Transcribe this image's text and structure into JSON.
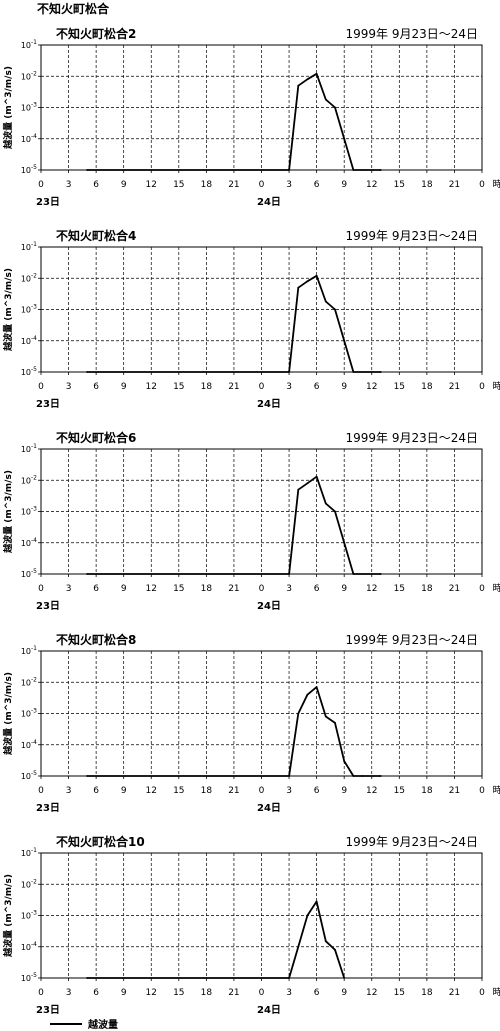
{
  "page_title": "不知火町松合",
  "legend": {
    "label": "越波量"
  },
  "chart_data": [
    {
      "type": "line",
      "title": "不知火町松合2",
      "period": "1999年  9月23日～24日",
      "ylabel": "越波量 (m^3/m/s)",
      "x_unit": "時",
      "x_ticks": [
        "0",
        "3",
        "6",
        "9",
        "12",
        "15",
        "18",
        "21",
        "0",
        "3",
        "6",
        "9",
        "12",
        "15",
        "18",
        "21",
        "0"
      ],
      "day_labels": [
        "23日",
        "24日"
      ],
      "y_scale": "log",
      "ylim": [
        1e-05,
        0.1
      ],
      "y_ticks": [
        1e-05,
        0.0001,
        0.001,
        0.01,
        0.1
      ],
      "grid": true,
      "series": [
        {
          "x": [
            5,
            27,
            28,
            29,
            30,
            31,
            32,
            33,
            34,
            37
          ],
          "y": [
            1e-05,
            1e-05,
            0.005,
            0.008,
            0.012,
            0.0018,
            0.001,
            0.0001,
            1e-05,
            1e-05
          ]
        }
      ]
    },
    {
      "type": "line",
      "title": "不知火町松合4",
      "period": "1999年  9月23日～24日",
      "ylabel": "越波量 (m^3/m/s)",
      "x_unit": "時",
      "x_ticks": [
        "0",
        "3",
        "6",
        "9",
        "12",
        "15",
        "18",
        "21",
        "0",
        "3",
        "6",
        "9",
        "12",
        "15",
        "18",
        "21",
        "0"
      ],
      "day_labels": [
        "23日",
        "24日"
      ],
      "y_scale": "log",
      "ylim": [
        1e-05,
        0.1
      ],
      "y_ticks": [
        1e-05,
        0.0001,
        0.001,
        0.01,
        0.1
      ],
      "grid": true,
      "series": [
        {
          "x": [
            5,
            27,
            28,
            29,
            30,
            31,
            32,
            33,
            34,
            37
          ],
          "y": [
            1e-05,
            1e-05,
            0.005,
            0.008,
            0.012,
            0.0018,
            0.001,
            0.0001,
            1e-05,
            1e-05
          ]
        }
      ]
    },
    {
      "type": "line",
      "title": "不知火町松合6",
      "period": "1999年  9月23日～24日",
      "ylabel": "越波量 (m^3/m/s)",
      "x_unit": "時",
      "x_ticks": [
        "0",
        "3",
        "6",
        "9",
        "12",
        "15",
        "18",
        "21",
        "0",
        "3",
        "6",
        "9",
        "12",
        "15",
        "18",
        "21",
        "0"
      ],
      "day_labels": [
        "23日",
        "24日"
      ],
      "y_scale": "log",
      "ylim": [
        1e-05,
        0.1
      ],
      "y_ticks": [
        1e-05,
        0.0001,
        0.001,
        0.01,
        0.1
      ],
      "grid": true,
      "series": [
        {
          "x": [
            5,
            27,
            28,
            29,
            30,
            31,
            32,
            33,
            34,
            37
          ],
          "y": [
            1e-05,
            1e-05,
            0.005,
            0.008,
            0.013,
            0.0018,
            0.001,
            0.0001,
            1e-05,
            1e-05
          ]
        }
      ]
    },
    {
      "type": "line",
      "title": "不知火町松合8",
      "period": "1999年  9月23日～24日",
      "ylabel": "越波量 (m^3/m/s)",
      "x_unit": "時",
      "x_ticks": [
        "0",
        "3",
        "6",
        "9",
        "12",
        "15",
        "18",
        "21",
        "0",
        "3",
        "6",
        "9",
        "12",
        "15",
        "18",
        "21",
        "0"
      ],
      "day_labels": [
        "23日",
        "24日"
      ],
      "y_scale": "log",
      "ylim": [
        1e-05,
        0.1
      ],
      "y_ticks": [
        1e-05,
        0.0001,
        0.001,
        0.01,
        0.1
      ],
      "grid": true,
      "series": [
        {
          "x": [
            5,
            27,
            28,
            29,
            30,
            31,
            32,
            33,
            34,
            35,
            37
          ],
          "y": [
            1e-05,
            1e-05,
            0.001,
            0.004,
            0.007,
            0.0008,
            0.0005,
            3e-05,
            1e-05,
            1e-05,
            1e-05
          ]
        }
      ]
    },
    {
      "type": "line",
      "title": "不知火町松合10",
      "period": "1999年  9月23日～24日",
      "ylabel": "越波量 (m^3/m/s)",
      "x_unit": "時",
      "x_ticks": [
        "0",
        "3",
        "6",
        "9",
        "12",
        "15",
        "18",
        "21",
        "0",
        "3",
        "6",
        "9",
        "12",
        "15",
        "18",
        "21",
        "0"
      ],
      "day_labels": [
        "23日",
        "24日"
      ],
      "y_scale": "log",
      "ylim": [
        1e-05,
        0.1
      ],
      "y_ticks": [
        1e-05,
        0.0001,
        0.001,
        0.01,
        0.1
      ],
      "grid": true,
      "series": [
        {
          "x": [
            5,
            27,
            28,
            29,
            30,
            31,
            32,
            33
          ],
          "y": [
            1e-05,
            1e-05,
            0.0001,
            0.001,
            0.0028,
            0.00015,
            8e-05,
            1e-05
          ]
        }
      ]
    }
  ]
}
